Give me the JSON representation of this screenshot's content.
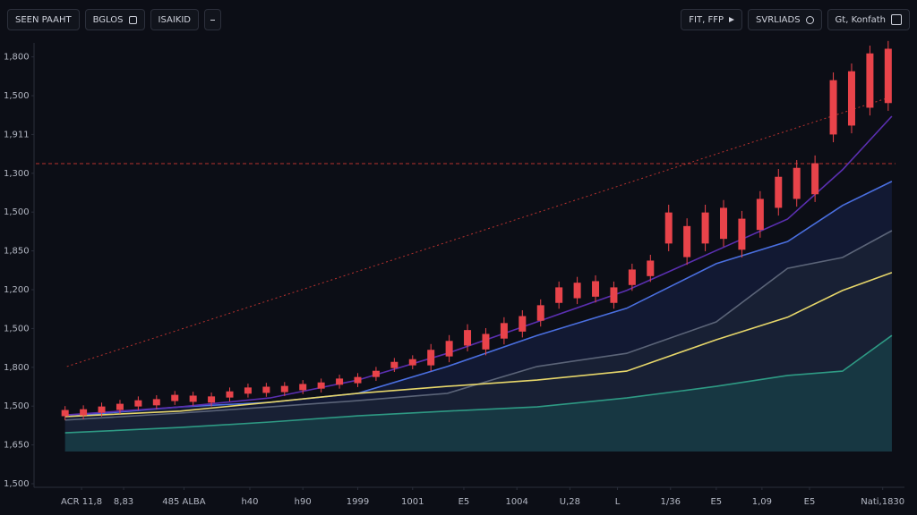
{
  "toolbar": {
    "left": [
      "SEEN PAAHT",
      "BGLOS",
      "ISAIKID"
    ],
    "right": [
      "FIT, FFP",
      "SVRLIADS",
      "Gt, Konfath"
    ]
  },
  "chart_data": {
    "type": "candlestick",
    "xlim": [
      -1.6,
      45.4
    ],
    "xticks": [
      {
        "value": 0.9,
        "label": "ACR 11,8"
      },
      {
        "value": 3.2,
        "label": "8,83"
      },
      {
        "value": 6.5,
        "label": "485 ALBA"
      },
      {
        "value": 10.1,
        "label": "h40"
      },
      {
        "value": 13.0,
        "label": "h90"
      },
      {
        "value": 16.0,
        "label": "1999"
      },
      {
        "value": 19.0,
        "label": "1001"
      },
      {
        "value": 21.8,
        "label": "E5"
      },
      {
        "value": 24.7,
        "label": "1004"
      },
      {
        "value": 27.6,
        "label": "U,28"
      },
      {
        "value": 30.2,
        "label": "L"
      },
      {
        "value": 33.1,
        "label": "1/36"
      },
      {
        "value": 35.6,
        "label": "E5"
      },
      {
        "value": 38.1,
        "label": "1,09"
      },
      {
        "value": 40.7,
        "label": "E5"
      },
      {
        "value": 44.7,
        "label": "Nati,1830"
      }
    ],
    "ylim": [
      0,
      11.3
    ],
    "yticks": [
      {
        "value": 11,
        "label": "1,800"
      },
      {
        "value": 10,
        "label": "1,500"
      },
      {
        "value": 9,
        "label": "1,911"
      },
      {
        "value": 8,
        "label": "1,300"
      },
      {
        "value": 7,
        "label": "1,500"
      },
      {
        "value": 6,
        "label": "1,850"
      },
      {
        "value": 5,
        "label": "1,200"
      },
      {
        "value": 4,
        "label": "1,500"
      },
      {
        "value": 3,
        "label": "1,800"
      },
      {
        "value": 2,
        "label": "1,500"
      },
      {
        "value": 1,
        "label": "1,650"
      },
      {
        "value": 0,
        "label": "1,500"
      }
    ],
    "grid": false,
    "reference_line": {
      "value": 8.25,
      "color": "#b8322f"
    },
    "trend_line": {
      "x": [
        0.1,
        44.9
      ],
      "values": [
        3.02,
        9.93
      ],
      "color": "#b8322f"
    },
    "series": [
      {
        "type": "line",
        "color": "#4a6fe0",
        "fill": "#131b36",
        "x": [
          0,
          6.3,
          11.2,
          16,
          20.9,
          25.8,
          30.7,
          35.6,
          39.5,
          42.5,
          45.2
        ],
        "values": [
          1.73,
          1.98,
          2.1,
          2.33,
          3.02,
          3.82,
          4.52,
          5.67,
          6.24,
          7.17,
          7.79
        ]
      },
      {
        "type": "line",
        "color": "#5b6478",
        "fill": "#1a2134",
        "x": [
          0,
          6.3,
          11.2,
          16,
          20.9,
          25.8,
          30.7,
          35.6,
          39.5,
          42.5,
          45.2
        ],
        "values": [
          1.64,
          1.82,
          1.98,
          2.14,
          2.33,
          3.02,
          3.36,
          4.17,
          5.55,
          5.83,
          6.52
        ]
      },
      {
        "type": "line",
        "color": "#e6d66a",
        "x": [
          0,
          6.3,
          11.2,
          16,
          20.9,
          25.8,
          30.7,
          35.6,
          39.5,
          42.5,
          45.2
        ],
        "values": [
          1.73,
          1.87,
          2.1,
          2.33,
          2.51,
          2.67,
          2.9,
          3.71,
          4.29,
          4.98,
          5.44
        ]
      },
      {
        "type": "line",
        "color": "#2e9a84",
        "fill": "#173a44",
        "x": [
          0,
          6.3,
          11.2,
          16,
          20.9,
          25.8,
          30.7,
          35.6,
          39.5,
          42.5,
          45.2
        ],
        "values": [
          1.31,
          1.45,
          1.59,
          1.75,
          1.87,
          1.98,
          2.21,
          2.51,
          2.79,
          2.9,
          3.82
        ]
      },
      {
        "type": "line",
        "color": "#5a2fb0",
        "x": [
          0,
          6.3,
          11.2,
          16,
          20.9,
          25.8,
          30.7,
          35.6,
          39.5,
          42.5,
          45.2
        ],
        "values": [
          1.77,
          1.98,
          2.21,
          2.67,
          3.36,
          4.17,
          4.98,
          6.01,
          6.82,
          8.09,
          9.47
        ]
      },
      {
        "type": "candlestick",
        "color": "#e8434a",
        "x": [
          0,
          1,
          2,
          3,
          4,
          5,
          6,
          7,
          8,
          9,
          10,
          11,
          12,
          13,
          14,
          15,
          16,
          17,
          18,
          19,
          20,
          21,
          22,
          23,
          24,
          25,
          26,
          27,
          28,
          29,
          30,
          31,
          32,
          33,
          34,
          35,
          36,
          37,
          38,
          39,
          40,
          41,
          42,
          43,
          44,
          45
        ],
        "open": [
          1.74,
          1.92,
          1.83,
          2.06,
          1.99,
          2.18,
          2.13,
          2.27,
          2.09,
          2.38,
          2.32,
          2.5,
          2.36,
          2.57,
          2.45,
          2.71,
          2.59,
          2.91,
          2.98,
          3.21,
          3.05,
          3.68,
          3.56,
          3.86,
          3.74,
          4.32,
          4.2,
          5.06,
          4.78,
          5.22,
          4.66,
          5.52,
          5.35,
          6.99,
          5.84,
          6.99,
          6.31,
          6.83,
          6.54,
          7.91,
          7.34,
          8.26,
          9.0,
          10.63,
          9.69,
          11.21
        ],
        "high": [
          2.0,
          2.02,
          2.09,
          2.16,
          2.25,
          2.28,
          2.39,
          2.37,
          2.35,
          2.48,
          2.58,
          2.6,
          2.62,
          2.67,
          2.71,
          2.81,
          2.85,
          3.01,
          3.24,
          3.31,
          3.6,
          3.83,
          4.11,
          4.01,
          4.29,
          4.47,
          4.75,
          5.21,
          5.33,
          5.37,
          5.21,
          5.67,
          5.9,
          7.19,
          6.84,
          7.19,
          7.31,
          7.03,
          7.54,
          8.11,
          8.34,
          8.46,
          10.6,
          10.83,
          11.29,
          11.41
        ],
        "low": [
          1.64,
          1.66,
          1.73,
          1.8,
          1.89,
          1.92,
          2.03,
          2.01,
          1.99,
          2.12,
          2.22,
          2.24,
          2.26,
          2.31,
          2.35,
          2.45,
          2.49,
          2.65,
          2.88,
          2.95,
          2.9,
          3.13,
          3.41,
          3.31,
          3.59,
          3.77,
          4.05,
          4.51,
          4.63,
          4.67,
          4.51,
          4.97,
          5.2,
          5.99,
          5.64,
          5.99,
          6.11,
          5.83,
          6.34,
          6.91,
          7.14,
          7.26,
          8.8,
          9.03,
          9.49,
          9.61
        ],
        "close": [
          1.9,
          1.76,
          1.99,
          1.9,
          2.15,
          2.02,
          2.29,
          2.11,
          2.25,
          2.22,
          2.48,
          2.34,
          2.52,
          2.41,
          2.61,
          2.55,
          2.75,
          2.75,
          3.14,
          3.05,
          3.45,
          3.28,
          3.96,
          3.46,
          4.14,
          3.92,
          4.6,
          4.66,
          5.18,
          4.82,
          5.06,
          5.12,
          5.75,
          6.19,
          6.64,
          6.19,
          7.11,
          6.03,
          7.34,
          7.11,
          8.14,
          7.46,
          10.4,
          9.23,
          11.09,
          9.81
        ]
      }
    ]
  }
}
